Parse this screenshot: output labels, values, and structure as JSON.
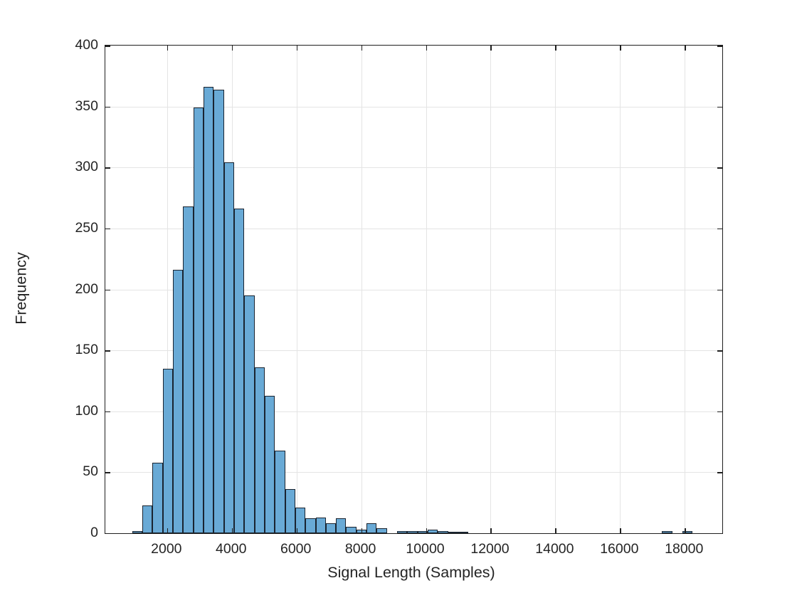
{
  "figure": {
    "background": "#ffffff",
    "axis_color": "#1f1f1f",
    "grid_color": "#e4e4e4",
    "text_color": "#242424"
  },
  "chart_data": {
    "type": "bar",
    "subtype": "histogram",
    "title": "",
    "xlabel": "Signal Length (Samples)",
    "ylabel": "Frequency",
    "xlim": [
      90,
      19160
    ],
    "ylim": [
      0,
      400
    ],
    "x_ticks": [
      2000,
      4000,
      6000,
      8000,
      10000,
      12000,
      14000,
      16000,
      18000
    ],
    "y_ticks": [
      0,
      50,
      100,
      150,
      200,
      250,
      300,
      350,
      400
    ],
    "grid": true,
    "legend": "none",
    "bin_start": 920,
    "bin_width": 315,
    "frequencies": [
      2,
      23,
      58,
      135,
      216,
      268,
      349,
      366,
      364,
      304,
      266,
      195,
      136,
      113,
      68,
      36,
      21,
      12,
      13,
      8,
      12,
      5,
      3,
      8,
      4,
      0,
      2,
      2,
      2,
      3,
      2,
      1,
      1,
      0,
      0,
      0,
      0,
      0,
      0,
      0,
      0,
      0,
      0,
      0,
      0,
      0,
      0,
      0,
      0,
      0,
      0,
      0,
      2,
      0,
      2,
      0
    ],
    "bar_fill": "#69aad6",
    "bar_edge": "#1a2430"
  }
}
